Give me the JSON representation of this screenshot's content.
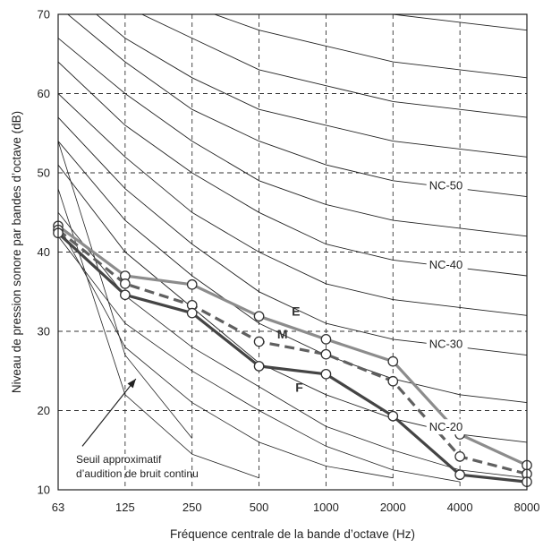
{
  "chart_data": {
    "type": "line",
    "xlabel": "Fréquence centrale de la bande d’octave (Hz)",
    "ylabel": "Niveau de pression sonore par bandes d’octave (dB)",
    "categories": [
      "63",
      "125",
      "250",
      "500",
      "1000",
      "2000",
      "4000",
      "8000"
    ],
    "ylim": [
      10,
      70
    ],
    "yticks": [
      10,
      20,
      30,
      40,
      50,
      60,
      70
    ],
    "grid": true,
    "nc_curves": [
      {
        "level": 20,
        "label": "NC-20",
        "values": [
          51,
          40,
          33,
          26,
          22,
          19,
          17,
          16
        ]
      },
      {
        "level": 25,
        "label": "",
        "values": [
          54,
          44,
          37,
          31,
          27,
          24,
          22,
          21
        ]
      },
      {
        "level": 30,
        "label": "NC-30",
        "values": [
          57,
          48,
          41,
          35,
          31,
          29,
          28,
          27
        ]
      },
      {
        "level": 35,
        "label": "",
        "values": [
          60,
          52,
          45,
          40,
          36,
          34,
          33,
          32
        ]
      },
      {
        "level": 40,
        "label": "NC-40",
        "values": [
          64,
          56,
          50,
          45,
          41,
          39,
          38,
          37
        ]
      },
      {
        "level": 45,
        "label": "",
        "values": [
          67,
          60,
          54,
          49,
          46,
          44,
          43,
          42
        ]
      },
      {
        "level": 50,
        "label": "NC-50",
        "values": [
          71,
          64,
          58,
          54,
          51,
          49,
          48,
          47
        ]
      },
      {
        "level": 55,
        "label": "",
        "values": [
          74,
          67,
          62,
          58,
          56,
          54,
          53,
          52
        ]
      },
      {
        "level": 60,
        "label": "",
        "values": [
          77,
          71,
          67,
          63,
          61,
          59,
          58,
          57
        ]
      },
      {
        "level": 65,
        "label": "",
        "values": [
          80,
          75,
          71,
          68,
          66,
          64,
          63,
          62
        ]
      },
      {
        "level": 70,
        "label": "",
        "values": [
          83,
          79,
          75,
          72,
          71,
          70,
          69,
          68
        ]
      }
    ],
    "threshold": {
      "label_lines": [
        "Seuil approximatif",
        "d’audition de bruit continu"
      ],
      "segments": [
        [
          [
            0,
            54
          ],
          [
            1,
            27
          ],
          [
            2,
            16.5
          ]
        ],
        [
          [
            0,
            48
          ],
          [
            1,
            22
          ],
          [
            2,
            14.5
          ],
          [
            3,
            11.5
          ]
        ],
        [
          [
            0,
            43.5
          ],
          [
            1,
            28
          ],
          [
            2,
            21
          ],
          [
            3,
            16
          ],
          [
            4,
            13
          ],
          [
            5,
            11.5
          ]
        ],
        [
          [
            0,
            42
          ],
          [
            1,
            31
          ],
          [
            2,
            25
          ],
          [
            3,
            20
          ],
          [
            4,
            15.5
          ],
          [
            5,
            12.5
          ],
          [
            6,
            11
          ]
        ],
        [
          [
            0,
            45
          ],
          [
            1,
            34.5
          ],
          [
            2,
            28
          ],
          [
            3,
            23
          ],
          [
            4,
            18
          ],
          [
            5,
            15
          ],
          [
            6,
            12.5
          ],
          [
            7,
            11.5
          ]
        ]
      ]
    },
    "series": [
      {
        "name": "E",
        "color": "#8c8c8c",
        "style": "solid",
        "values": [
          43.3,
          37.0,
          35.9,
          31.9,
          29.0,
          26.2,
          17.0,
          13.1
        ]
      },
      {
        "name": "M",
        "color": "#606060",
        "style": "dashed",
        "values": [
          42.8,
          36.0,
          33.3,
          28.7,
          27.1,
          23.7,
          14.2,
          12.0
        ]
      },
      {
        "name": "F",
        "color": "#444444",
        "style": "solid",
        "values": [
          42.4,
          34.6,
          32.3,
          25.6,
          24.6,
          19.3,
          11.9,
          11.0
        ]
      }
    ]
  }
}
